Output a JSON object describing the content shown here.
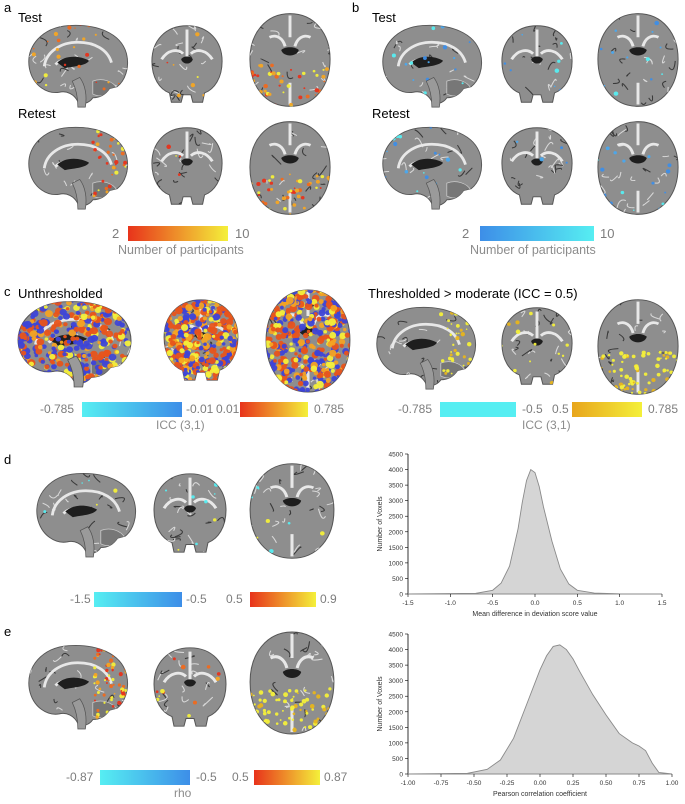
{
  "panels": {
    "a": {
      "letter": "a",
      "rows": [
        "Test",
        "Retest"
      ],
      "cbar_min": "2",
      "cbar_max": "10",
      "cbar_label": "Number of participants"
    },
    "b": {
      "letter": "b",
      "rows": [
        "Test",
        "Retest"
      ],
      "cbar_min": "2",
      "cbar_max": "10",
      "cbar_label": "Number of participants"
    },
    "c": {
      "letter": "c",
      "left_title": "Unthresholded",
      "right_title": "Thresholded > moderate (ICC = 0.5)",
      "left_ticks": [
        "-0.785",
        "-0.01",
        "0.01",
        "0.785"
      ],
      "right_ticks": [
        "-0.785",
        "-0.5",
        "0.5",
        "0.785"
      ],
      "cbar_label": "ICC (3,1)"
    },
    "d": {
      "letter": "d",
      "ticks": [
        "-1.5",
        "-0.5",
        "0.5",
        "0.9"
      ]
    },
    "e": {
      "letter": "e",
      "ticks": [
        "-0.87",
        "-0.5",
        "0.5",
        "0.87"
      ],
      "cbar_label": "rho"
    }
  },
  "colors": {
    "warm_start": "#e8331b",
    "warm_end": "#f4f03a",
    "cool_start": "#3d8ee8",
    "cool_end": "#56eef2",
    "hist_fill": "#d5d5d5"
  },
  "chart_data": [
    {
      "type": "area",
      "xlabel": "Mean difference in deviation score value",
      "ylabel": "Number of Voxels",
      "xlim": [
        -1.5,
        1.5
      ],
      "ylim": [
        0,
        4500
      ],
      "xticks": [
        "-1.5",
        "-1.0",
        "-0.5",
        "0.0",
        "0.5",
        "1.0",
        "1.5"
      ],
      "yticks": [
        "0",
        "500",
        "1000",
        "1500",
        "2000",
        "2500",
        "3000",
        "3500",
        "4000",
        "4500"
      ],
      "x": [
        -1.5,
        -0.7,
        -0.5,
        -0.4,
        -0.3,
        -0.2,
        -0.15,
        -0.1,
        -0.05,
        0.0,
        0.05,
        0.1,
        0.2,
        0.3,
        0.4,
        0.5,
        0.7,
        1.0,
        1.5
      ],
      "y": [
        0,
        20,
        120,
        350,
        900,
        2100,
        2950,
        3650,
        4000,
        3900,
        3450,
        2800,
        1700,
        800,
        320,
        120,
        30,
        5,
        0
      ]
    },
    {
      "type": "area",
      "xlabel": "Pearson correlation coefficient",
      "ylabel": "Number of Voxels",
      "xlim": [
        -1.0,
        1.0
      ],
      "ylim": [
        0,
        4500
      ],
      "xticks": [
        "-1.00",
        "-0.75",
        "-0.50",
        "-0.25",
        "0.00",
        "0.25",
        "0.50",
        "0.75",
        "1.00"
      ],
      "yticks": [
        "0",
        "500",
        "1000",
        "1500",
        "2000",
        "2500",
        "3000",
        "3500",
        "4000",
        "4500"
      ],
      "x": [
        -1.0,
        -0.55,
        -0.4,
        -0.3,
        -0.2,
        -0.1,
        0.0,
        0.05,
        0.1,
        0.15,
        0.2,
        0.25,
        0.3,
        0.4,
        0.5,
        0.6,
        0.7,
        0.75,
        0.8,
        0.85,
        0.9,
        1.0
      ],
      "y": [
        0,
        20,
        150,
        450,
        1150,
        2250,
        3350,
        3800,
        4100,
        4150,
        4000,
        3700,
        3300,
        2550,
        1900,
        1300,
        1000,
        900,
        750,
        350,
        50,
        0
      ]
    }
  ]
}
